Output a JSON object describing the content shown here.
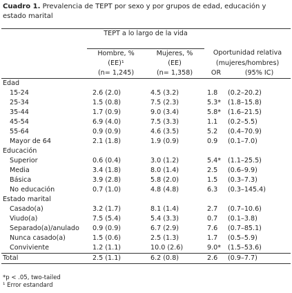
{
  "title": {
    "label": "Cuadro 1.",
    "text": "Prevalencia de TEPT por sexo y por grupos de edad, educación y estado marital"
  },
  "table": {
    "group_header": "TEPT a lo largo de la vida",
    "columns": [
      [
        "Hombre, %",
        "(EE)¹",
        "(n= 1,245)"
      ],
      [
        "Mujeres, %",
        "(EE)",
        "(n= 1,358)"
      ]
    ],
    "or_header": [
      "Oportunidad relativa",
      "(mujeres/hombres)"
    ],
    "or_sub": [
      "OR",
      "(95% IC)"
    ],
    "sections": [
      {
        "name": "Edad",
        "rows": [
          [
            "15-24",
            "2.6 (2.0)",
            "4.5 (3.2)",
            "1.8",
            "(0.2–20.2)"
          ],
          [
            "25-34",
            "1.5 (0.8)",
            "7.5 (2.3)",
            "5.3*",
            "(1.8–15.8)"
          ],
          [
            "35-44",
            "1.7 (0.9)",
            "9.0 (3.4)",
            "5.8*",
            "(1.6–21.5)"
          ],
          [
            "45-54",
            "6.9 (4.0)",
            "7.5 (3.3)",
            "1.1",
            "(0.2–5.5)"
          ],
          [
            "55-64",
            "0.9 (0.9)",
            "4.6 (3.5)",
            "5.2",
            "(0.4–70.9)"
          ],
          [
            "Mayor de 64",
            "2.1 (1.8)",
            "1.9 (0.9)",
            "0.9",
            "(0.1–7.0)"
          ]
        ]
      },
      {
        "name": "Educación",
        "rows": [
          [
            "Superior",
            "0.6 (0.4)",
            "3.0 (1.2)",
            "5.4*",
            "(1.1–25.5)"
          ],
          [
            "Media",
            "3.4 (1.8)",
            "8.0 (1.4)",
            "2.5",
            "(0.6–9.9)"
          ],
          [
            "Básica",
            "3.9 (2.8)",
            "5.8 (2.0)",
            "1.5",
            "(0.3–7.3)"
          ],
          [
            "No educación",
            "0.7 (1.0)",
            "4.8 (4.8)",
            "6.3",
            "(0.3–145.4)"
          ]
        ]
      },
      {
        "name": "Estado marital",
        "rows": [
          [
            "Casado(a)",
            "3.2 (1.7)",
            "8.1 (1.4)",
            "2.7",
            "(0.7–10.6)"
          ],
          [
            "Viudo(a)",
            "7.5 (5.4)",
            "5.4 (3.3)",
            "0.7",
            "(0.1–3.8)"
          ],
          [
            "Separado(a)/anulado",
            "0.9 (0.9)",
            "6.7 (2.9)",
            "7.6",
            "(0.7–85.1)"
          ],
          [
            "Nunca casado(a)",
            "1.5 (0.6)",
            "2.5 (1.3)",
            "1.7",
            "(0.5–5.9)"
          ],
          [
            "Conviviente",
            "1.2 (1.1)",
            "10.0 (2.6)",
            "9.0*",
            "(1.5–53.6)"
          ]
        ]
      }
    ],
    "total": [
      "Total",
      "2.5 (1.1)",
      "6.2 (0.8)",
      "2.6",
      "(0.9–7.7)"
    ]
  },
  "footnotes": [
    "*p < .05, two-tailed",
    "¹ Error estandard"
  ]
}
